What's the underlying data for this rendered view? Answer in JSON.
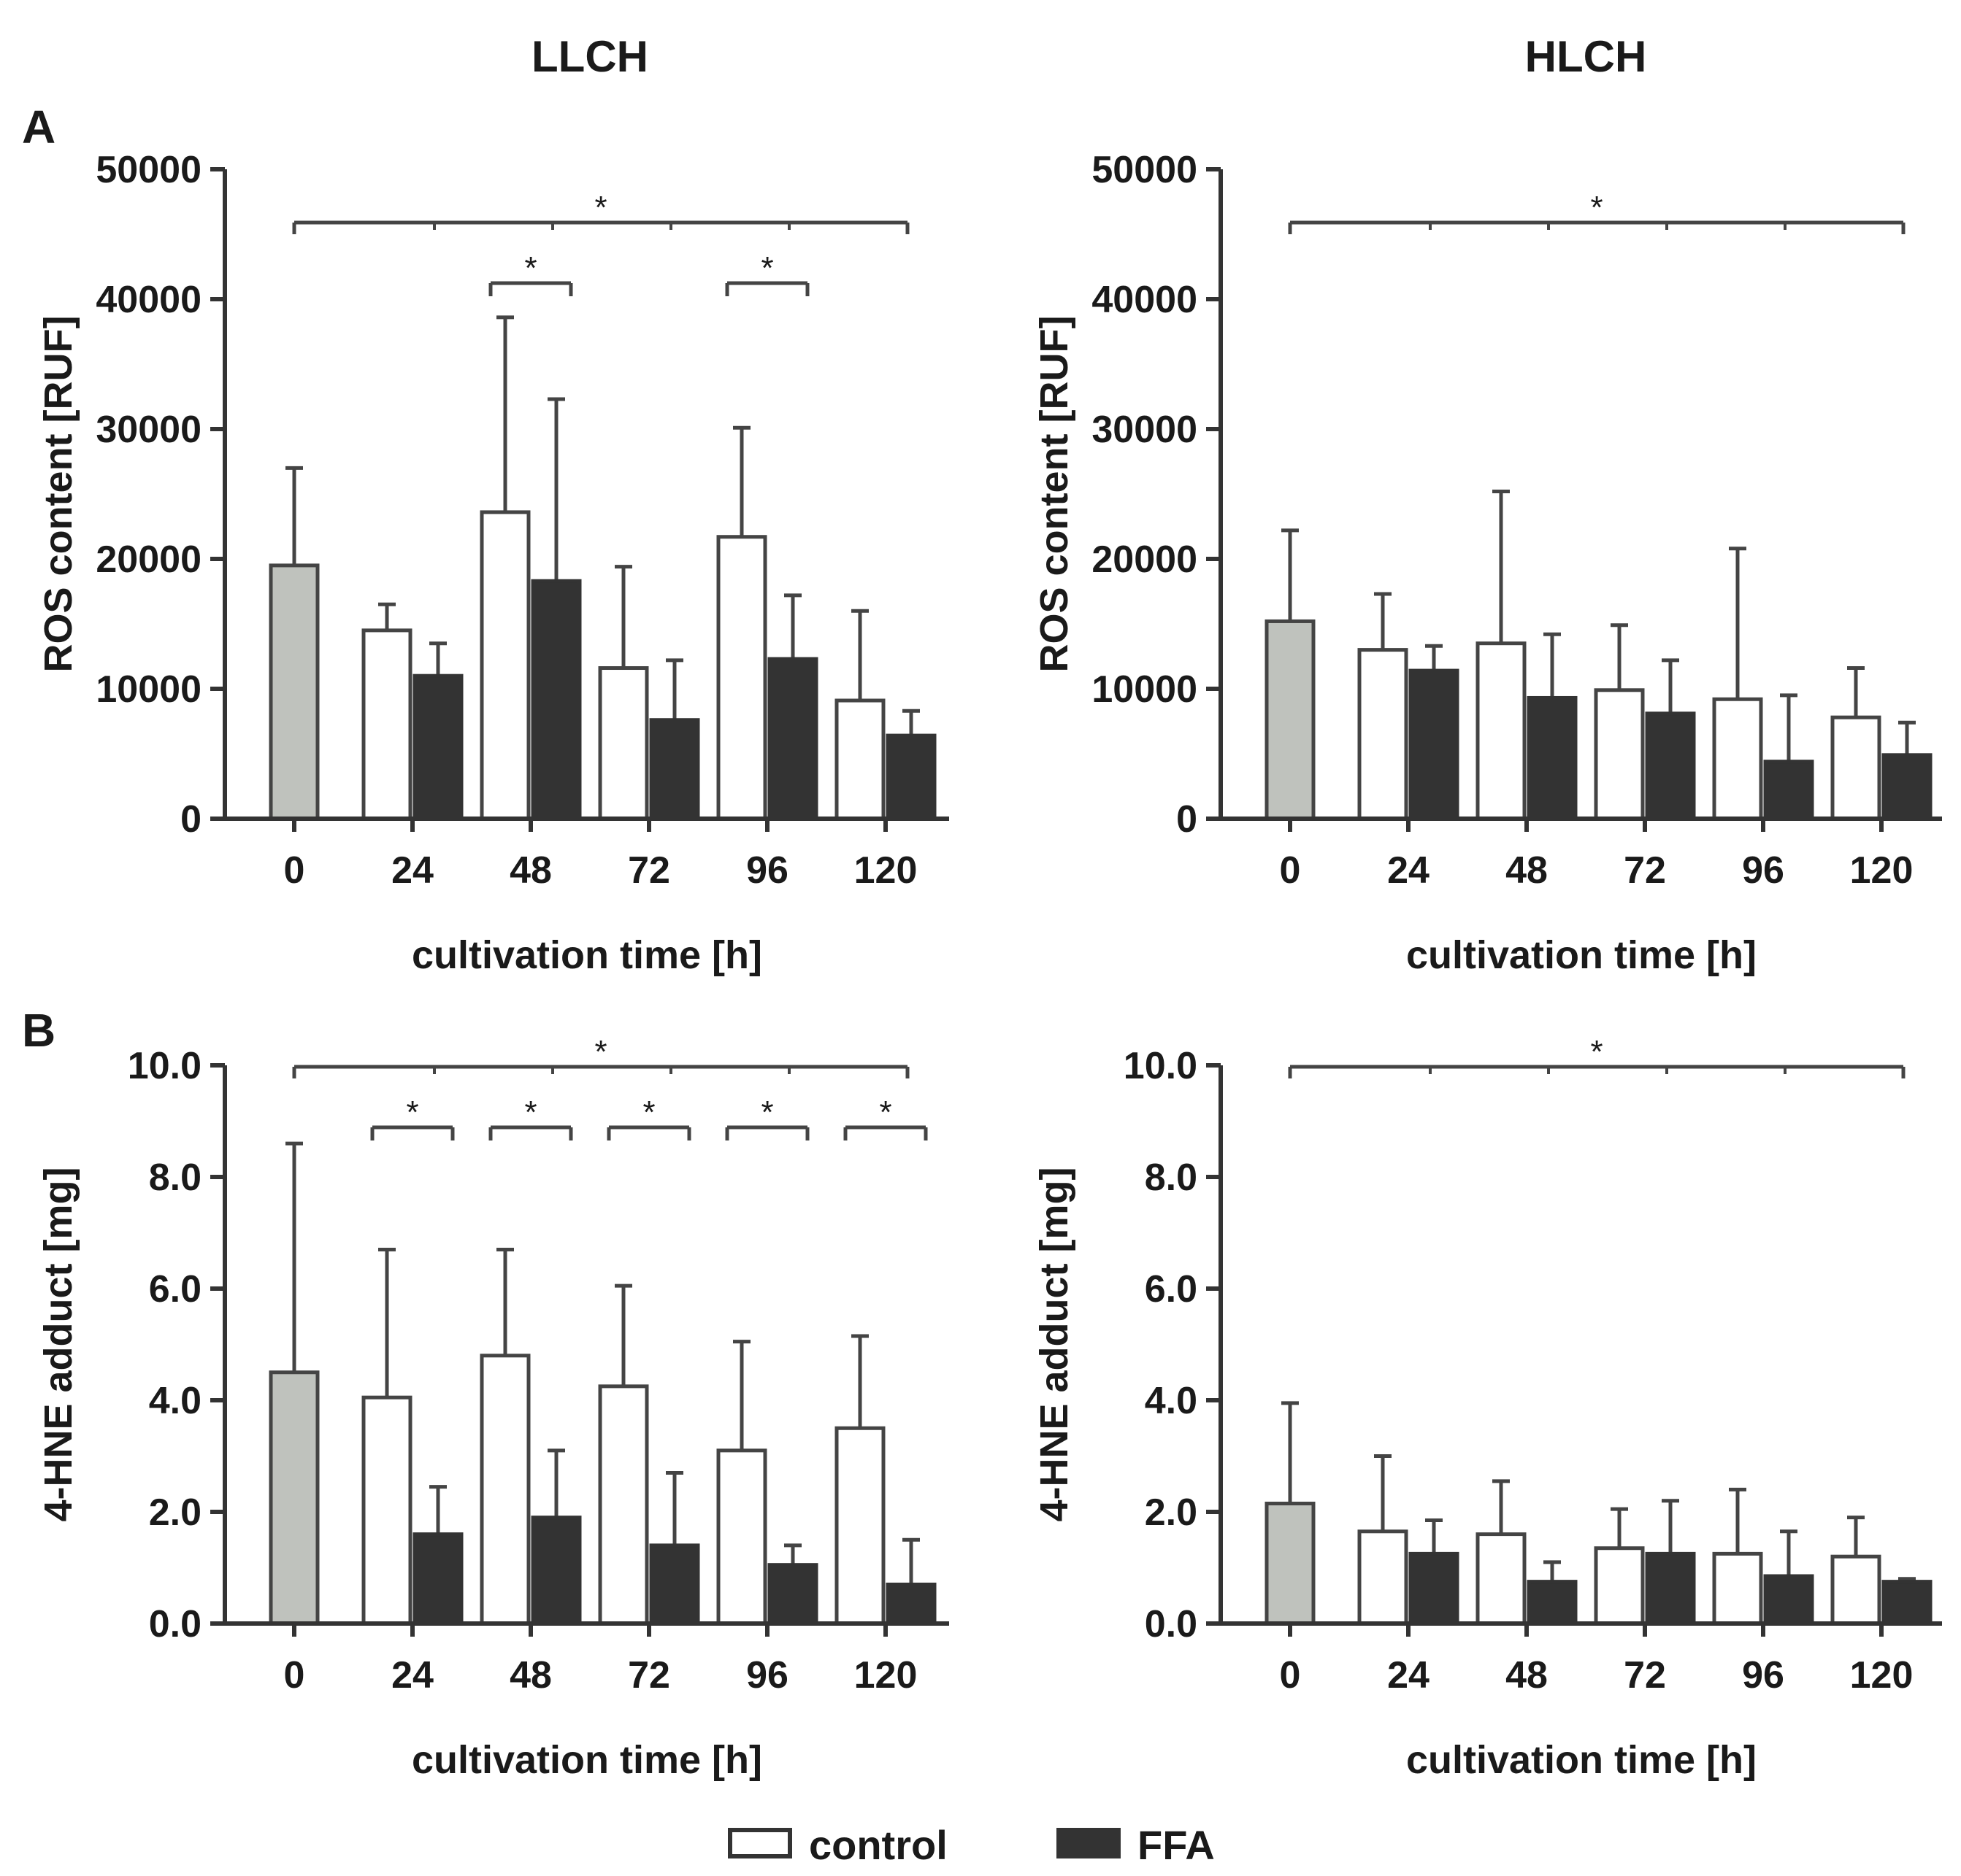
{
  "figure": {
    "column_titles": [
      "LLCH",
      "HLCH"
    ],
    "panel_letters": [
      "A",
      "B"
    ],
    "legend": [
      {
        "label": "control",
        "color": "#ffffff",
        "name": "legend-control"
      },
      {
        "label": "FFA",
        "color": "#333333",
        "name": "legend-ffa"
      }
    ],
    "colors": {
      "baseline": "#bfc2bd",
      "control": "#ffffff",
      "ffa": "#333333",
      "line": "#444444"
    }
  },
  "chart_data": [
    {
      "id": "A-LLCH",
      "type": "bar",
      "title": "LLCH",
      "panel": "A",
      "categories": [
        "0",
        "24",
        "48",
        "72",
        "96",
        "120"
      ],
      "xlabel": "cultivation time [h]",
      "ylabel": "ROS content [RUF]",
      "ylim": [
        0,
        50000
      ],
      "yticks": [
        "0",
        "10000",
        "20000",
        "30000",
        "40000",
        "50000"
      ],
      "baseline": {
        "value": 19500,
        "error": 7500
      },
      "series": [
        {
          "name": "control",
          "values": [
            null,
            14500,
            23600,
            11600,
            21700,
            9100
          ],
          "errors": [
            null,
            2000,
            15000,
            7800,
            8400,
            6900
          ]
        },
        {
          "name": "FFA",
          "values": [
            null,
            11000,
            18300,
            7600,
            12300,
            6400
          ],
          "errors": [
            null,
            2500,
            14000,
            4600,
            4900,
            1900
          ]
        }
      ],
      "significance": [
        {
          "type": "span",
          "label": "*",
          "from": "0",
          "to": "120"
        },
        {
          "type": "pair",
          "label": "*",
          "at": "48"
        },
        {
          "type": "pair",
          "label": "*",
          "at": "96"
        }
      ]
    },
    {
      "id": "A-HLCH",
      "type": "bar",
      "title": "HLCH",
      "panel": "A",
      "categories": [
        "0",
        "24",
        "48",
        "72",
        "96",
        "120"
      ],
      "xlabel": "cultivation time [h]",
      "ylabel": "ROS content [RUF]",
      "ylim": [
        0,
        50000
      ],
      "yticks": [
        "0",
        "10000",
        "20000",
        "30000",
        "40000",
        "50000"
      ],
      "baseline": {
        "value": 15200,
        "error": 7000
      },
      "series": [
        {
          "name": "control",
          "values": [
            null,
            13000,
            13500,
            9900,
            9200,
            7800
          ],
          "errors": [
            null,
            4300,
            11700,
            5000,
            11600,
            3800
          ]
        },
        {
          "name": "FFA",
          "values": [
            null,
            11400,
            9300,
            8100,
            4400,
            4900
          ],
          "errors": [
            null,
            1900,
            4900,
            4100,
            5100,
            2500
          ]
        }
      ],
      "significance": [
        {
          "type": "span",
          "label": "*",
          "from": "0",
          "to": "120"
        }
      ]
    },
    {
      "id": "B-LLCH",
      "type": "bar",
      "title": "LLCH",
      "panel": "B",
      "categories": [
        "0",
        "24",
        "48",
        "72",
        "96",
        "120"
      ],
      "xlabel": "cultivation time [h]",
      "ylabel": "4-HNE adduct [mg]",
      "ylim": [
        0,
        10
      ],
      "yticks": [
        "0.0",
        "2.0",
        "4.0",
        "6.0",
        "8.0",
        "10.0"
      ],
      "baseline": {
        "value": 4.5,
        "error": 4.1
      },
      "series": [
        {
          "name": "control",
          "values": [
            null,
            4.05,
            4.8,
            4.25,
            3.1,
            3.5
          ],
          "errors": [
            null,
            2.65,
            1.9,
            1.8,
            1.95,
            1.65
          ]
        },
        {
          "name": "FFA",
          "values": [
            null,
            1.6,
            1.9,
            1.4,
            1.05,
            0.7
          ],
          "errors": [
            null,
            0.85,
            1.2,
            1.3,
            0.35,
            0.8
          ]
        }
      ],
      "significance": [
        {
          "type": "span",
          "label": "*",
          "from": "0",
          "to": "120"
        },
        {
          "type": "pair",
          "label": "*",
          "at": "24"
        },
        {
          "type": "pair",
          "label": "*",
          "at": "48"
        },
        {
          "type": "pair",
          "label": "*",
          "at": "72"
        },
        {
          "type": "pair",
          "label": "*",
          "at": "96"
        },
        {
          "type": "pair",
          "label": "*",
          "at": "120"
        }
      ]
    },
    {
      "id": "B-HLCH",
      "type": "bar",
      "title": "HLCH",
      "panel": "B",
      "categories": [
        "0",
        "24",
        "48",
        "72",
        "96",
        "120"
      ],
      "xlabel": "cultivation time [h]",
      "ylabel": "4-HNE adduct [mg]",
      "ylim": [
        0,
        10
      ],
      "yticks": [
        "0.0",
        "2.0",
        "4.0",
        "6.0",
        "8.0",
        "10.0"
      ],
      "baseline": {
        "value": 2.15,
        "error": 1.8
      },
      "series": [
        {
          "name": "control",
          "values": [
            null,
            1.65,
            1.6,
            1.35,
            1.25,
            1.2
          ],
          "errors": [
            null,
            1.35,
            0.95,
            0.7,
            1.15,
            0.7
          ]
        },
        {
          "name": "FFA",
          "values": [
            null,
            1.25,
            0.75,
            1.25,
            0.85,
            0.75
          ],
          "errors": [
            null,
            0.6,
            0.35,
            0.95,
            0.8,
            0.05
          ]
        }
      ],
      "significance": [
        {
          "type": "span",
          "label": "*",
          "from": "0",
          "to": "120"
        }
      ]
    }
  ]
}
